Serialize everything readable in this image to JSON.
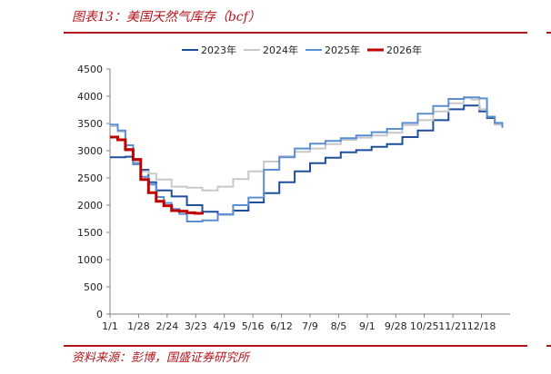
{
  "header": {
    "title": "图表13：美国天然气库存（bcf）"
  },
  "footer": {
    "source": "资料来源：彭博，国盛证券研究所"
  },
  "colors": {
    "accent": "#b4141b",
    "2023年": "#1f4e9c",
    "2024年": "#c8c8c8",
    "2025年": "#5b8fd4",
    "2026年": "#c00000"
  },
  "chart_data": {
    "type": "line",
    "title": "美国天然气库存（bcf）",
    "xlabel": "",
    "ylabel": "",
    "ylim": [
      0,
      4500
    ],
    "yticks": [
      0,
      500,
      1000,
      1500,
      2000,
      2500,
      3000,
      3500,
      4000,
      4500
    ],
    "xticks": [
      "1/1",
      "1/28",
      "2/24",
      "3/23",
      "4/19",
      "5/16",
      "6/12",
      "7/9",
      "8/5",
      "9/1",
      "9/28",
      "10/25",
      "11/21",
      "12/18"
    ],
    "xlim": [
      0,
      52
    ],
    "legend_position": "top",
    "grid": false,
    "series": [
      {
        "name": "2023年",
        "x": [
          0,
          2,
          3,
          4,
          5,
          6,
          8,
          10,
          12,
          14,
          16,
          18,
          20,
          22,
          24,
          26,
          28,
          30,
          32,
          34,
          36,
          38,
          40,
          42,
          44,
          46,
          47,
          48,
          49,
          50,
          51
        ],
        "values": [
          2880,
          2890,
          2760,
          2650,
          2420,
          2270,
          2160,
          2000,
          1880,
          1830,
          1900,
          2050,
          2220,
          2420,
          2620,
          2770,
          2870,
          2970,
          3010,
          3070,
          3120,
          3250,
          3370,
          3560,
          3760,
          3830,
          3830,
          3720,
          3600,
          3500,
          3480
        ]
      },
      {
        "name": "2024年",
        "x": [
          0,
          1,
          2,
          3,
          4,
          5,
          6,
          8,
          10,
          12,
          14,
          16,
          18,
          20,
          22,
          24,
          26,
          28,
          30,
          32,
          34,
          36,
          38,
          40,
          42,
          44,
          46,
          47,
          48,
          49,
          50,
          51
        ],
        "values": [
          3450,
          3350,
          3000,
          2800,
          2620,
          2580,
          2470,
          2340,
          2320,
          2270,
          2340,
          2480,
          2620,
          2800,
          2900,
          2980,
          3040,
          3120,
          3200,
          3240,
          3280,
          3330,
          3470,
          3560,
          3720,
          3870,
          3970,
          3940,
          3760,
          3630,
          3480,
          3420
        ]
      },
      {
        "name": "2025年",
        "x": [
          0,
          1,
          2,
          3,
          4,
          5,
          6,
          7,
          8,
          9,
          10,
          12,
          14,
          16,
          18,
          20,
          22,
          24,
          26,
          28,
          30,
          32,
          34,
          36,
          38,
          40,
          42,
          44,
          46,
          48,
          49,
          50,
          51
        ],
        "values": [
          3480,
          3370,
          3100,
          2750,
          2520,
          2380,
          2150,
          2040,
          1930,
          1840,
          1700,
          1720,
          1830,
          2000,
          2140,
          2650,
          2880,
          3040,
          3130,
          3180,
          3230,
          3280,
          3340,
          3400,
          3510,
          3680,
          3820,
          3950,
          3980,
          3960,
          3620,
          3510,
          3420
        ]
      },
      {
        "name": "2026年",
        "x": [
          0,
          1,
          2,
          3,
          4,
          5,
          6,
          7,
          8,
          9,
          10,
          11,
          12
        ],
        "values": [
          3250,
          3200,
          3020,
          2840,
          2470,
          2230,
          2070,
          1990,
          1900,
          1890,
          1860,
          1850,
          1830
        ]
      }
    ]
  }
}
